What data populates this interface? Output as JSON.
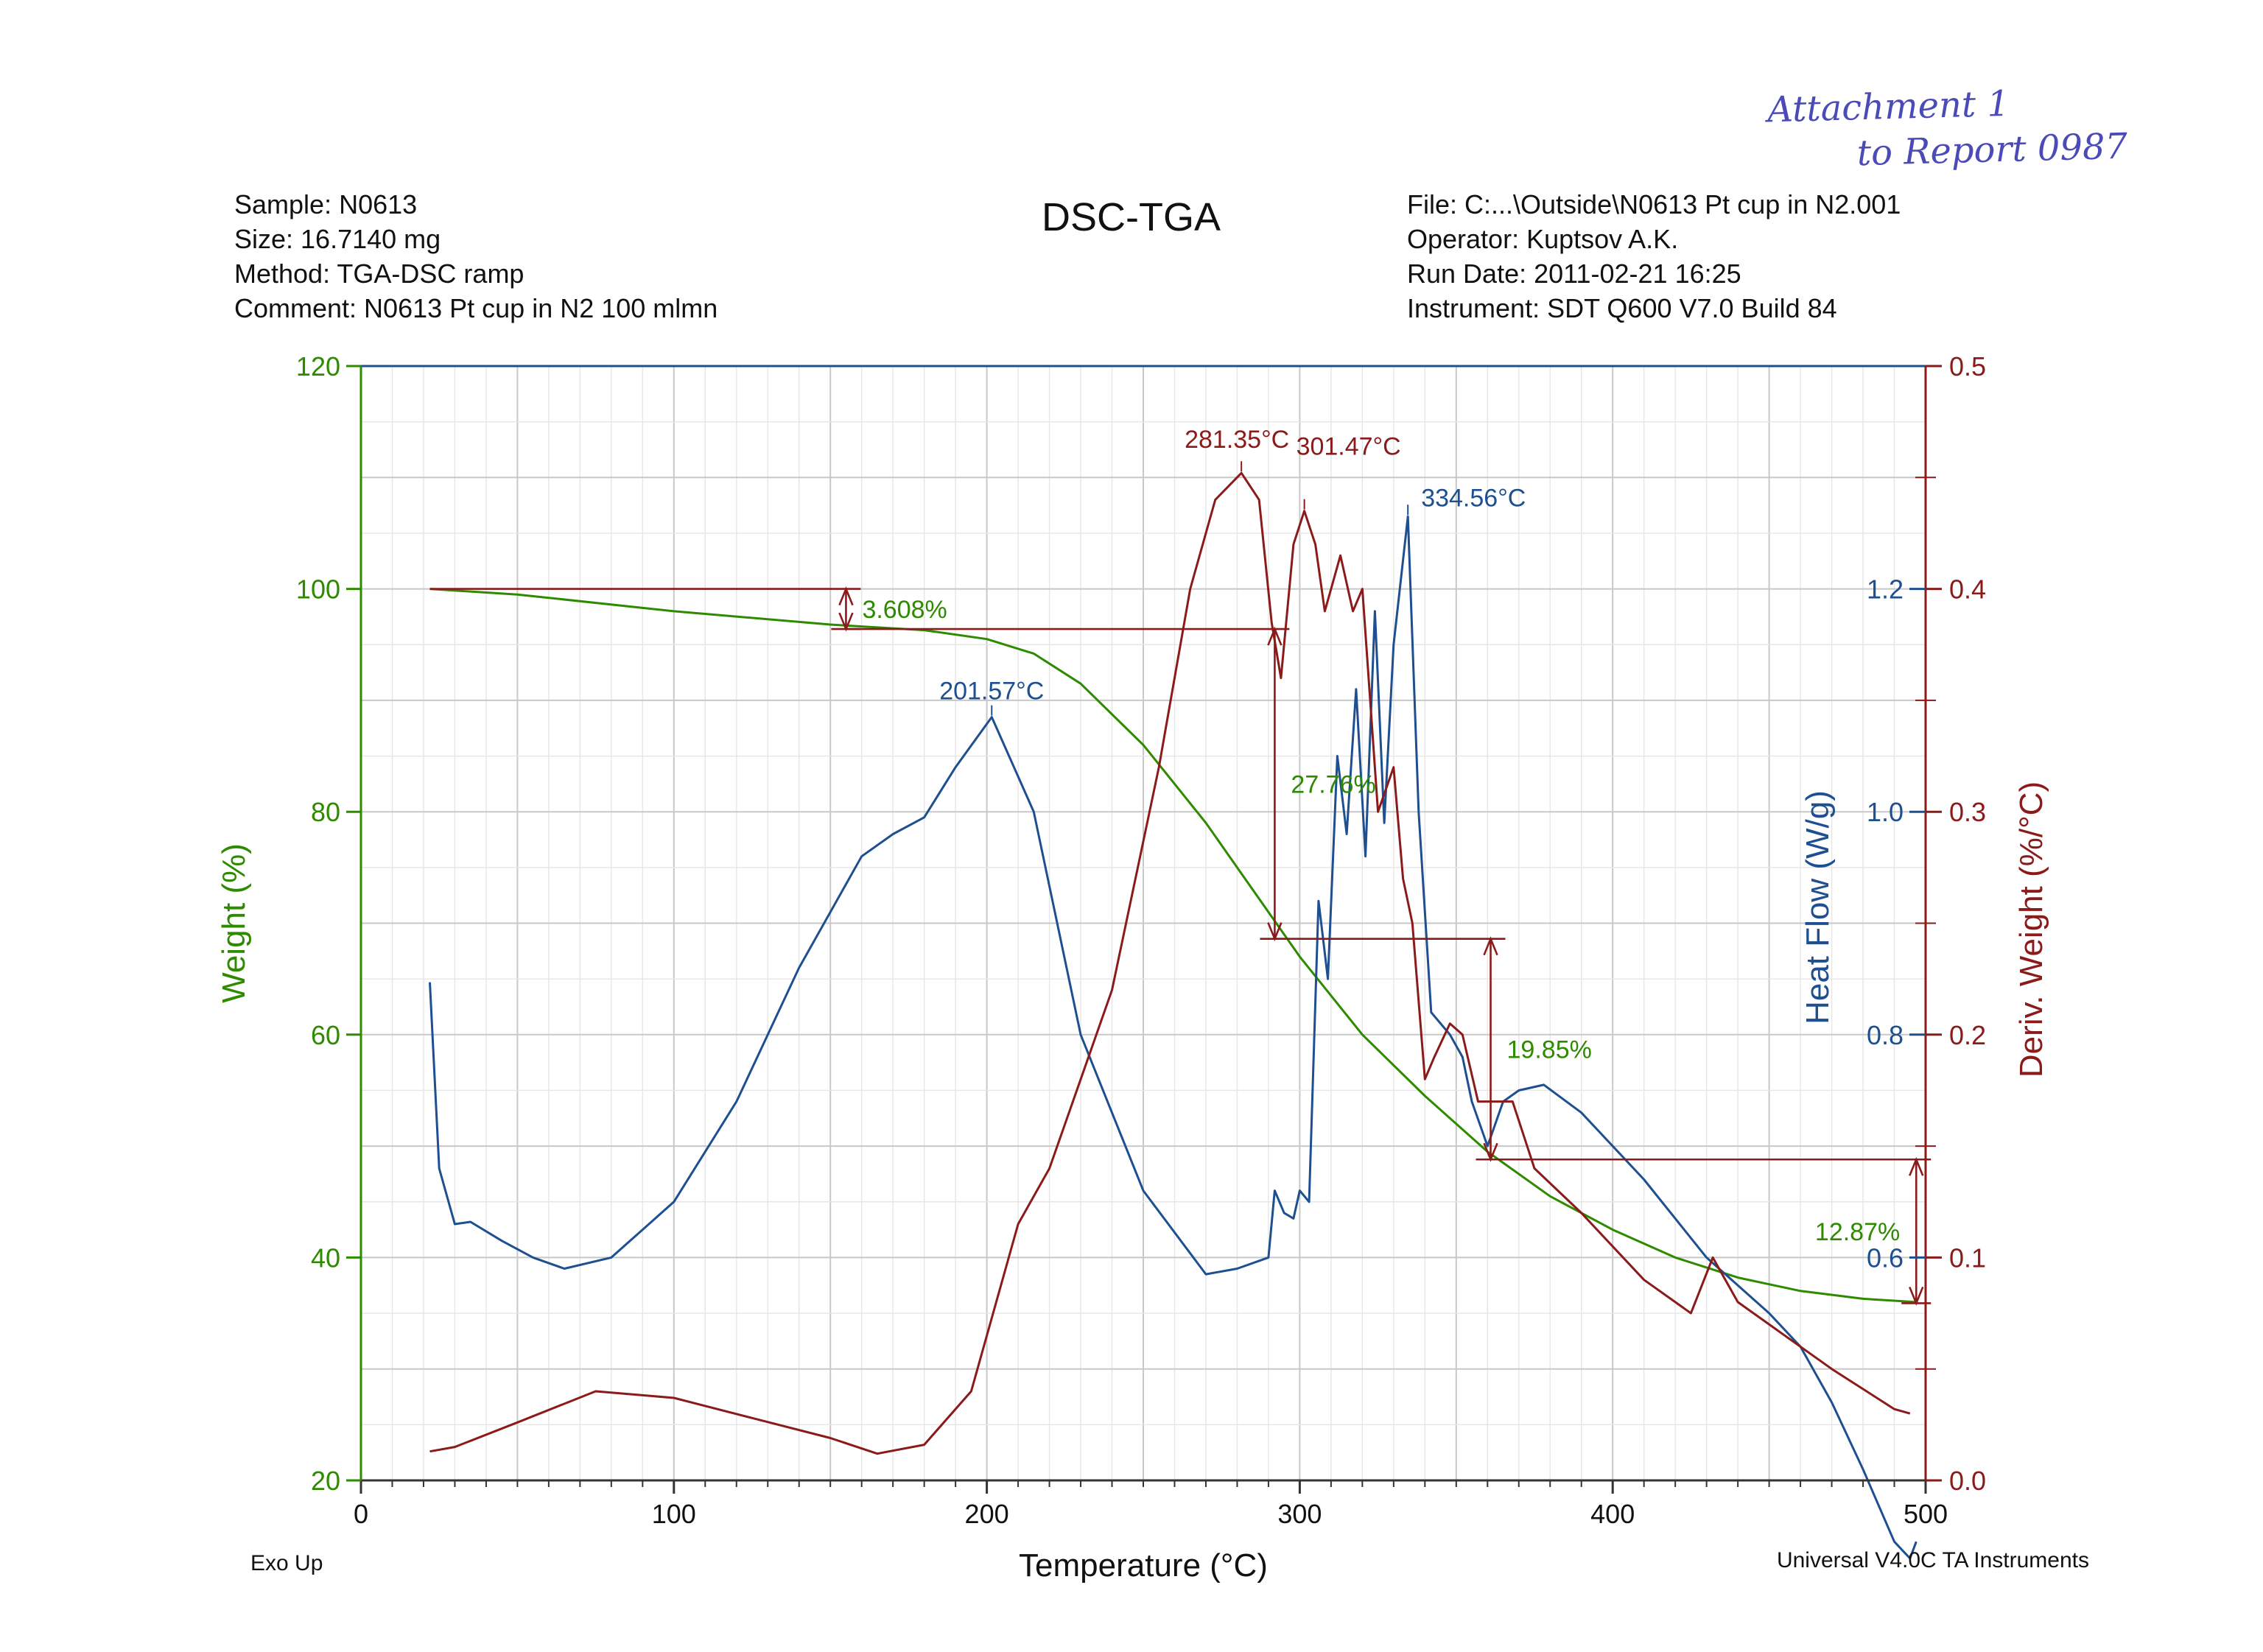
{
  "header": {
    "title": "DSC-TGA",
    "sample": "Sample: N0613",
    "size": "Size:  16.7140 mg",
    "method": "Method: TGA-DSC ramp",
    "comment": "Comment: N0613 Pt cup in N2 100 mlmn",
    "file": "File: C:...\\Outside\\N0613 Pt cup in N2.001",
    "operator": "Operator: Kuptsov A.K.",
    "run_date": "Run Date: 2011-02-21 16:25",
    "instrument": "Instrument: SDT Q600 V7.0 Build 84"
  },
  "handwritten_note": {
    "line1": "Attachment 1",
    "line2": "to Report 0987"
  },
  "footer": {
    "left": "Exo Up",
    "right": "Universal V4.0C TA Instruments"
  },
  "colors": {
    "weight": "#2e8b00",
    "heat_flow": "#1d4f91",
    "deriv": "#8b1a1a",
    "grid": "#d4d4d4",
    "axis": "#333333"
  },
  "chart_data": {
    "type": "line",
    "x_axis": {
      "label": "Temperature (°C)",
      "range": [
        0,
        500
      ],
      "ticks": [
        "0",
        "100",
        "200",
        "300",
        "400",
        "500"
      ]
    },
    "y_axes": {
      "weight": {
        "label": "Weight (%)",
        "range": [
          20,
          120
        ],
        "ticks": [
          "20",
          "40",
          "60",
          "80",
          "100",
          "120"
        ]
      },
      "heat_flow": {
        "label": "Heat Flow (W/g)",
        "ticks": [
          "0.6",
          "0.8",
          "1.0",
          "1.2"
        ],
        "tick_values": [
          0.6,
          0.8,
          1.0,
          1.2
        ]
      },
      "deriv": {
        "label": "Deriv. Weight (%/°C)",
        "range": [
          0.0,
          0.5
        ],
        "ticks": [
          "0.0",
          "0.1",
          "0.2",
          "0.3",
          "0.4",
          "0.5"
        ]
      }
    },
    "grid": true,
    "series": [
      {
        "key": "weight",
        "axis": "weight",
        "x": [
          22,
          50,
          100,
          150,
          180,
          200,
          215,
          230,
          250,
          270,
          290,
          300,
          320,
          340,
          360,
          380,
          400,
          420,
          440,
          460,
          480,
          497
        ],
        "y": [
          100,
          99.5,
          98,
          96.8,
          96.3,
          95.5,
          94.2,
          91.5,
          86,
          79,
          71,
          67,
          60,
          54.5,
          49.5,
          45.5,
          42.5,
          40,
          38.2,
          37,
          36.3,
          36
        ]
      },
      {
        "key": "heat_flow",
        "axis": "heat_flow",
        "x": [
          22,
          25,
          30,
          35,
          45,
          55,
          65,
          80,
          100,
          120,
          140,
          160,
          170,
          180,
          190,
          201.57,
          215,
          230,
          250,
          270,
          280,
          290,
          292,
          295,
          298,
          300,
          303,
          306,
          309,
          312,
          315,
          318,
          321,
          324,
          327,
          330,
          334.56,
          338,
          342,
          348,
          352,
          355,
          360,
          365,
          370,
          378,
          390,
          410,
          430,
          450,
          460,
          470,
          480,
          490,
          495,
          497
        ],
        "y": [
          0.847,
          0.68,
          0.63,
          0.632,
          0.615,
          0.6,
          0.59,
          0.6,
          0.65,
          0.74,
          0.86,
          0.96,
          0.98,
          0.995,
          1.04,
          1.085,
          1.0,
          0.8,
          0.66,
          0.585,
          0.59,
          0.6,
          0.66,
          0.64,
          0.635,
          0.66,
          0.65,
          0.92,
          0.85,
          1.05,
          0.98,
          1.11,
          0.96,
          1.18,
          0.99,
          1.15,
          1.265,
          1.0,
          0.82,
          0.8,
          0.78,
          0.74,
          0.7,
          0.74,
          0.75,
          0.755,
          0.73,
          0.67,
          0.6,
          0.55,
          0.52,
          0.47,
          0.41,
          0.345,
          0.33,
          0.345
        ]
      },
      {
        "key": "deriv",
        "axis": "deriv",
        "x": [
          22,
          30,
          50,
          75,
          100,
          125,
          150,
          165,
          180,
          195,
          210,
          220,
          240,
          255,
          265,
          273,
          281.35,
          287,
          291,
          294,
          298,
          301.47,
          305,
          308,
          310,
          313,
          317,
          320,
          325,
          330,
          333,
          336,
          340,
          343,
          348,
          352,
          357,
          362,
          368,
          375,
          390,
          410,
          425,
          432,
          440,
          455,
          470,
          490,
          495
        ],
        "y": [
          0.013,
          0.015,
          0.026,
          0.04,
          0.037,
          0.028,
          0.019,
          0.012,
          0.016,
          0.04,
          0.115,
          0.14,
          0.22,
          0.32,
          0.4,
          0.44,
          0.452,
          0.44,
          0.385,
          0.36,
          0.42,
          0.435,
          0.42,
          0.39,
          0.4,
          0.415,
          0.39,
          0.4,
          0.3,
          0.32,
          0.27,
          0.25,
          0.18,
          0.19,
          0.205,
          0.2,
          0.17,
          0.17,
          0.17,
          0.14,
          0.12,
          0.09,
          0.075,
          0.1,
          0.08,
          0.065,
          0.05,
          0.032,
          0.03
        ]
      }
    ],
    "annotations": [
      {
        "text": "201.57°C",
        "series": "heat_flow",
        "x": 201.57
      },
      {
        "text": "334.56°C",
        "series": "heat_flow",
        "x": 334.56
      },
      {
        "text": "281.35°C",
        "series": "deriv",
        "x": 281.35
      },
      {
        "text": "301.47°C",
        "series": "deriv",
        "x": 301.47
      }
    ],
    "weight_steps": [
      {
        "text": "3.608%",
        "x_start": 22,
        "x_end": 155,
        "from": 100,
        "to": 96.4
      },
      {
        "text": "27.76%",
        "x_start": 155,
        "x_end": 292,
        "from": 96.4,
        "to": 68.6
      },
      {
        "text": "19.85%",
        "x_start": 292,
        "x_end": 361,
        "from": 68.6,
        "to": 48.8
      },
      {
        "text": "12.87%",
        "x_start": 361,
        "x_end": 497,
        "from": 48.8,
        "to": 35.9
      }
    ]
  }
}
